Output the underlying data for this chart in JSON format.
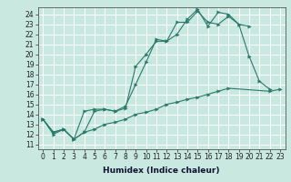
{
  "title": "",
  "xlabel": "Humidex (Indice chaleur)",
  "bg_color": "#c8e8e0",
  "grid_color": "#ffffff",
  "line_color": "#2a7a6a",
  "xlim": [
    -0.5,
    23.5
  ],
  "ylim": [
    10.5,
    24.7
  ],
  "xticks": [
    0,
    1,
    2,
    3,
    4,
    5,
    6,
    7,
    8,
    9,
    10,
    11,
    12,
    13,
    14,
    15,
    16,
    17,
    18,
    19,
    20,
    21,
    22,
    23
  ],
  "yticks": [
    11,
    12,
    13,
    14,
    15,
    16,
    17,
    18,
    19,
    20,
    21,
    22,
    23,
    24
  ],
  "line1_x": [
    0,
    1,
    2,
    3,
    4,
    5,
    6,
    7,
    8,
    9,
    10,
    11,
    12,
    13,
    14,
    15,
    16,
    17,
    18,
    19,
    20,
    21,
    22
  ],
  "line1_y": [
    13.5,
    12.2,
    12.5,
    11.5,
    12.2,
    14.3,
    14.5,
    14.3,
    14.6,
    18.8,
    20.0,
    21.3,
    21.3,
    23.2,
    23.2,
    24.3,
    23.2,
    23.0,
    23.8,
    23.0,
    19.8,
    17.3,
    16.5
  ],
  "line2_x": [
    0,
    1,
    2,
    3,
    4,
    5,
    6,
    7,
    8,
    9,
    10,
    11,
    12,
    13,
    14,
    15,
    16,
    17,
    18,
    19,
    20
  ],
  "line2_y": [
    13.5,
    12.2,
    12.5,
    11.5,
    14.3,
    14.5,
    14.5,
    14.3,
    14.8,
    17.0,
    19.2,
    21.5,
    21.3,
    22.0,
    23.5,
    24.5,
    22.8,
    24.2,
    24.0,
    23.0,
    22.8
  ],
  "line3_x": [
    0,
    1,
    2,
    3,
    4,
    5,
    6,
    7,
    8,
    9,
    10,
    11,
    12,
    13,
    14,
    15,
    16,
    17,
    18,
    22,
    23
  ],
  "line3_y": [
    13.5,
    12.0,
    12.5,
    11.5,
    12.2,
    12.5,
    13.0,
    13.2,
    13.5,
    14.0,
    14.2,
    14.5,
    15.0,
    15.2,
    15.5,
    15.7,
    16.0,
    16.3,
    16.6,
    16.3,
    16.5
  ],
  "tick_fontsize": 5.5,
  "xlabel_fontsize": 6.5
}
